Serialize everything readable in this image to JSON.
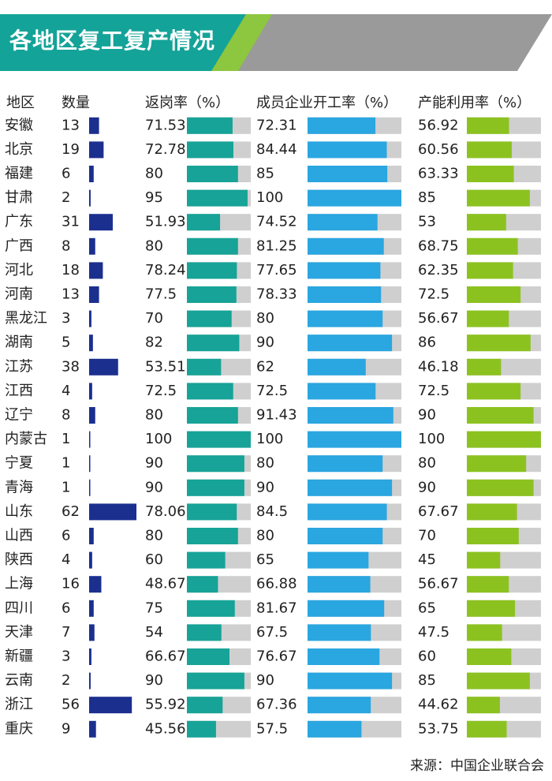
{
  "title": "各地区复工复产情况",
  "source": "来源：中国企业联合会",
  "headers": {
    "region": "地区",
    "count": "数量",
    "return_rate": "返岗率（%）",
    "start_rate": "成员企业开工率（%）",
    "capacity_rate": "产能利用率（%）"
  },
  "colors": {
    "header_teal": "#14a398",
    "header_green": "#8dc63f",
    "header_gray": "#9a9a9a",
    "count_bar": "#1b2f8f",
    "return_bar": "#17a397",
    "start_bar": "#2aa6e0",
    "capacity_bar": "#8cc220",
    "track": "#cfcfcf"
  },
  "chart_data": {
    "type": "table",
    "max_percent": 100,
    "max_count": 62,
    "rows": [
      {
        "region": "安徽",
        "count": 13,
        "return_rate": "71.53",
        "start_rate": "72.31",
        "capacity_rate": "56.92"
      },
      {
        "region": "北京",
        "count": 19,
        "return_rate": "72.78",
        "start_rate": "84.44",
        "capacity_rate": "60.56"
      },
      {
        "region": "福建",
        "count": 6,
        "return_rate": "80",
        "start_rate": "85",
        "capacity_rate": "63.33"
      },
      {
        "region": "甘肃",
        "count": 2,
        "return_rate": "95",
        "start_rate": "100",
        "capacity_rate": "85"
      },
      {
        "region": "广东",
        "count": 31,
        "return_rate": "51.93",
        "start_rate": "74.52",
        "capacity_rate": "53"
      },
      {
        "region": "广西",
        "count": 8,
        "return_rate": "80",
        "start_rate": "81.25",
        "capacity_rate": "68.75"
      },
      {
        "region": "河北",
        "count": 18,
        "return_rate": "78.24",
        "start_rate": "77.65",
        "capacity_rate": "62.35"
      },
      {
        "region": "河南",
        "count": 13,
        "return_rate": "77.5",
        "start_rate": "78.33",
        "capacity_rate": "72.5"
      },
      {
        "region": "黑龙江",
        "count": 3,
        "return_rate": "70",
        "start_rate": "80",
        "capacity_rate": "56.67"
      },
      {
        "region": "湖南",
        "count": 5,
        "return_rate": "82",
        "start_rate": "90",
        "capacity_rate": "86"
      },
      {
        "region": "江苏",
        "count": 38,
        "return_rate": "53.51",
        "start_rate": "62",
        "capacity_rate": "46.18"
      },
      {
        "region": "江西",
        "count": 4,
        "return_rate": "72.5",
        "start_rate": "72.5",
        "capacity_rate": "72.5"
      },
      {
        "region": "辽宁",
        "count": 8,
        "return_rate": "80",
        "start_rate": "91.43",
        "capacity_rate": "90"
      },
      {
        "region": "内蒙古",
        "count": 1,
        "return_rate": "100",
        "start_rate": "100",
        "capacity_rate": "100"
      },
      {
        "region": "宁夏",
        "count": 1,
        "return_rate": "90",
        "start_rate": "80",
        "capacity_rate": "80"
      },
      {
        "region": "青海",
        "count": 1,
        "return_rate": "90",
        "start_rate": "90",
        "capacity_rate": "90"
      },
      {
        "region": "山东",
        "count": 62,
        "return_rate": "78.06",
        "start_rate": "84.5",
        "capacity_rate": "67.67"
      },
      {
        "region": "山西",
        "count": 6,
        "return_rate": "80",
        "start_rate": "80",
        "capacity_rate": "70"
      },
      {
        "region": "陕西",
        "count": 4,
        "return_rate": "60",
        "start_rate": "65",
        "capacity_rate": "45"
      },
      {
        "region": "上海",
        "count": 16,
        "return_rate": "48.67",
        "start_rate": "66.88",
        "capacity_rate": "56.67"
      },
      {
        "region": "四川",
        "count": 6,
        "return_rate": "75",
        "start_rate": "81.67",
        "capacity_rate": "65"
      },
      {
        "region": "天津",
        "count": 7,
        "return_rate": "54",
        "start_rate": "67.5",
        "capacity_rate": "47.5"
      },
      {
        "region": "新疆",
        "count": 3,
        "return_rate": "66.67",
        "start_rate": "76.67",
        "capacity_rate": "60"
      },
      {
        "region": "云南",
        "count": 2,
        "return_rate": "90",
        "start_rate": "90",
        "capacity_rate": "85"
      },
      {
        "region": "浙江",
        "count": 56,
        "return_rate": "55.92",
        "start_rate": "67.36",
        "capacity_rate": "44.62"
      },
      {
        "region": "重庆",
        "count": 9,
        "return_rate": "45.56",
        "start_rate": "57.5",
        "capacity_rate": "53.75"
      }
    ]
  }
}
